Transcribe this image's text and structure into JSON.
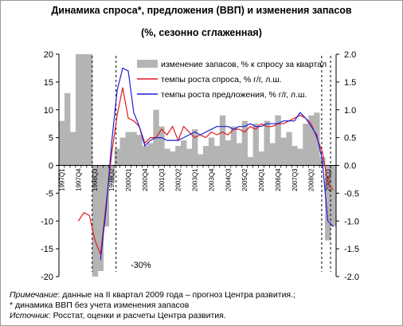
{
  "title": "Динамика спроса*, предложения (ВВП) и изменения запасов",
  "subtitle": "(%, сезонно сглаженная)",
  "notes": {
    "note_label": "Примечание",
    "note_text": ": данные на II квартал 2009 года – прогноз Центра развития.;",
    "footnote": "* динамика ВВП без учета изменения запасов",
    "source_label": "Источник",
    "source_text": ": Росстат, оценки и расчеты Центра развития."
  },
  "chart_data": {
    "type": "line",
    "title": "Динамика спроса*, предложения (ВВП) и изменения запасов",
    "subtitle": "(%, сезонно сглаженная)",
    "ylim_left": [
      -20,
      20
    ],
    "ylim_right": [
      -2.0,
      2.0
    ],
    "yticks_left": [
      "20",
      "15",
      "10",
      "5",
      "0",
      "-5",
      "-10",
      "-15",
      "-20"
    ],
    "yticks_right": [
      "2.0",
      "1.5",
      "1.0",
      "0.5",
      "0.0",
      "-0.5",
      "-1.0",
      "-1.5",
      "-2.0"
    ],
    "x": [
      "1997Q1",
      "1997Q2",
      "1997Q3",
      "1997Q4",
      "1998Q1",
      "1998Q2",
      "1998Q3",
      "1998Q4",
      "1999Q1",
      "1999Q2",
      "1999Q3",
      "1999Q4",
      "2000Q1",
      "2000Q2",
      "2000Q3",
      "2000Q4",
      "2001Q1",
      "2001Q2",
      "2001Q3",
      "2001Q4",
      "2002Q1",
      "2002Q2",
      "2002Q3",
      "2002Q4",
      "2003Q1",
      "2003Q2",
      "2003Q3",
      "2003Q4",
      "2004Q1",
      "2004Q2",
      "2004Q3",
      "2004Q4",
      "2005Q1",
      "2005Q2",
      "2005Q3",
      "2005Q4",
      "2006Q1",
      "2006Q2",
      "2006Q3",
      "2006Q4",
      "2007Q1",
      "2007Q2",
      "2007Q3",
      "2007Q4",
      "2008Q1",
      "2008Q2",
      "2008Q3",
      "2008Q4",
      "2009Q1",
      "2009Q2"
    ],
    "xtick_labels": [
      "1997Q1",
      "1997Q4",
      "1998Q3",
      "1999Q2",
      "2000Q1",
      "2000Q4",
      "2001Q3",
      "2002Q2",
      "2003Q1",
      "2003Q4",
      "2004Q3",
      "2005Q2",
      "2006Q1",
      "2006Q4",
      "2007Q3",
      "2008Q2",
      "2009Q1"
    ],
    "xtick_indices": [
      0,
      3,
      6,
      9,
      12,
      15,
      18,
      21,
      24,
      27,
      30,
      33,
      36,
      39,
      42,
      45,
      48
    ],
    "legend_position": "top-right",
    "series": [
      {
        "name": "изменение запасов, % к спросу за квартал",
        "kind": "area",
        "axis": "right",
        "color": "#b4b4b4",
        "values": [
          0.8,
          1.3,
          0.6,
          2.1,
          2.1,
          2.1,
          -2.3,
          -1.9,
          -1.1,
          -0.3,
          0.3,
          0.5,
          0.6,
          0.6,
          0.55,
          0.35,
          0.4,
          1.0,
          0.7,
          0.3,
          0.25,
          0.35,
          0.45,
          0.3,
          0.65,
          0.2,
          0.35,
          0.5,
          0.35,
          0.9,
          0.45,
          0.7,
          0.4,
          0.8,
          0.15,
          0.75,
          0.25,
          0.8,
          0.4,
          0.9,
          0.5,
          0.6,
          0.35,
          0.3,
          0.75,
          0.9,
          0.95,
          0.15,
          -1.35,
          -1.1
        ]
      },
      {
        "name": "темпы роста спроса, % г/г, л.ш.",
        "kind": "line",
        "axis": "left",
        "color": "#e31a1c",
        "values": [
          null,
          null,
          null,
          -10,
          -8.5,
          -9,
          -13.5,
          -16,
          -7,
          2,
          9,
          14,
          8.5,
          8,
          7,
          4,
          5,
          5,
          6.5,
          5.5,
          7,
          4.5,
          7,
          6,
          5,
          5.5,
          5,
          6,
          5.5,
          6,
          5.5,
          6.5,
          6.5,
          6,
          7,
          6.5,
          7.5,
          7,
          7,
          7.5,
          7.5,
          8,
          8.5,
          9,
          8.5,
          7.5,
          5,
          2.5,
          -3,
          -4.5
        ]
      },
      {
        "name": "темпы роста предложения, % г/г, л.ш.",
        "kind": "line",
        "axis": "left",
        "color": "#1f1fd6",
        "values": [
          null,
          null,
          null,
          null,
          null,
          null,
          null,
          -17,
          -8,
          4,
          13.5,
          17.5,
          17,
          9.5,
          7,
          3.5,
          4.5,
          5,
          5,
          4.5,
          4.5,
          4.5,
          5,
          5.5,
          6,
          5.5,
          6,
          6.5,
          7,
          7,
          7,
          6.5,
          7,
          7,
          7.5,
          7,
          7,
          7.5,
          7.5,
          7.5,
          8,
          8,
          8,
          9.5,
          8.5,
          7,
          5.5,
          1,
          -10,
          -11
        ]
      }
    ],
    "annotations": [
      {
        "text": "-30%",
        "kind": "text"
      },
      {
        "text": "",
        "kind": "dashed-marker",
        "at": "1998Q3"
      },
      {
        "text": "",
        "kind": "dashed-marker",
        "at": "1999Q3"
      },
      {
        "text": "",
        "kind": "dashed-marker",
        "at": "2008Q4"
      },
      {
        "text": "",
        "kind": "dashed-marker",
        "at": "2009Q2"
      }
    ]
  }
}
